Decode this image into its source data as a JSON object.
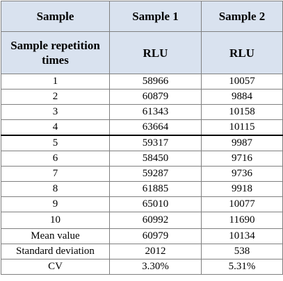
{
  "table": {
    "headers": [
      "Sample",
      "Sample 1",
      "Sample 2"
    ],
    "subheaders": [
      "Sample repetition times",
      "RLU",
      "RLU"
    ],
    "rows": [
      [
        "1",
        "58966",
        "10057"
      ],
      [
        "2",
        "60879",
        "9884"
      ],
      [
        "3",
        "61343",
        "10158"
      ],
      [
        "4",
        "63664",
        "10115"
      ],
      [
        "5",
        "59317",
        "9987"
      ],
      [
        "6",
        "58450",
        "9716"
      ],
      [
        "7",
        "59287",
        "9736"
      ],
      [
        "8",
        "61885",
        "9918"
      ],
      [
        "9",
        "65010",
        "10077"
      ],
      [
        "10",
        "60992",
        "11690"
      ],
      [
        "Mean value",
        "60979",
        "10134"
      ],
      [
        "Standard deviation",
        "2012",
        "538"
      ],
      [
        "CV",
        "3.30%",
        "5.31%"
      ]
    ]
  },
  "colors": {
    "header_background": "#d9e2ef",
    "grid_line": "#7f7f7f",
    "text": "#000000"
  }
}
